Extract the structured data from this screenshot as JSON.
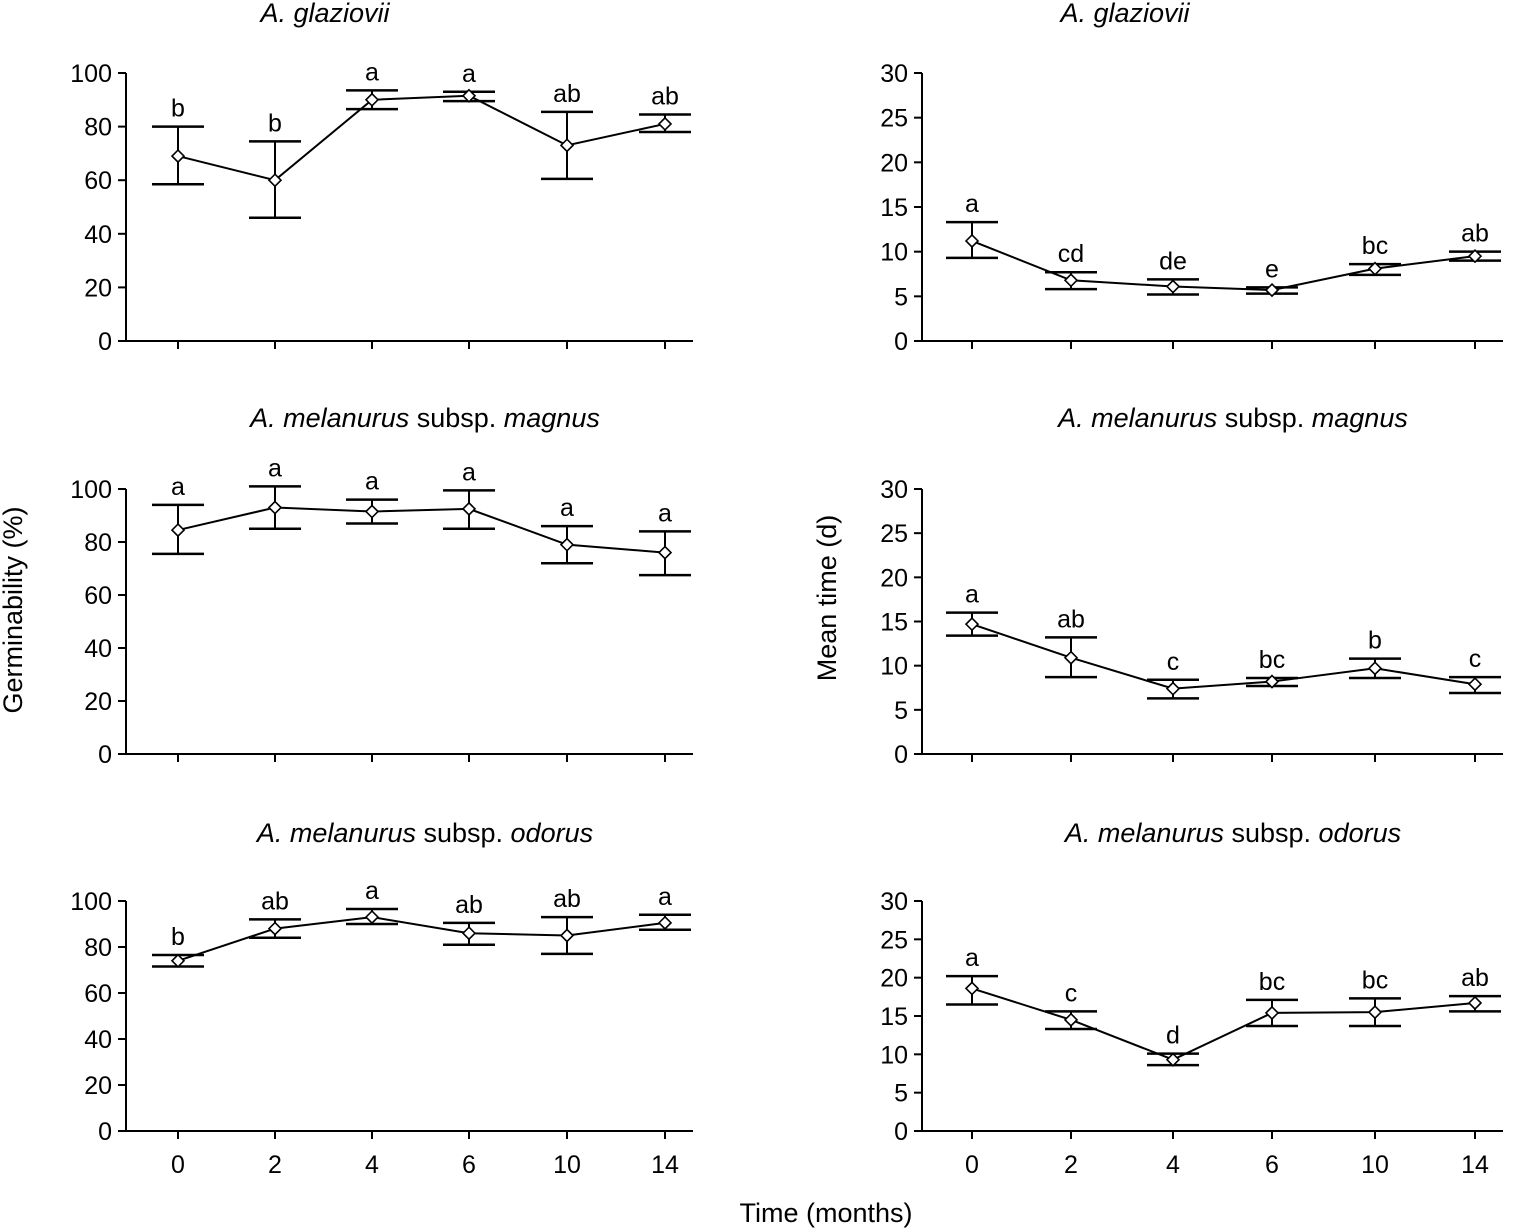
{
  "figure": {
    "ylabel_left": "Germinability (%)",
    "ylabel_right": "Mean time (d)",
    "xlabel": "Time (months)"
  },
  "chart_data": [
    {
      "type": "line",
      "title": {
        "italic": "A. glaziovii",
        "plain": "",
        "italic2": ""
      },
      "x": [
        "0",
        "2",
        "4",
        "6",
        "10",
        "14"
      ],
      "series": [
        {
          "values": [
            69,
            60,
            90,
            91.5,
            73,
            81
          ]
        }
      ],
      "error_bars": [
        [
          58.5,
          80
        ],
        [
          46,
          74.5
        ],
        [
          86.5,
          93.5
        ],
        [
          89.5,
          93
        ],
        [
          60.5,
          85.5
        ],
        [
          78,
          84.5
        ]
      ],
      "letters": [
        "b",
        "b",
        "a",
        "a",
        "ab",
        "ab"
      ],
      "ylim": [
        0,
        100
      ],
      "yticks": [
        0,
        20,
        40,
        60,
        80,
        100
      ]
    },
    {
      "type": "line",
      "title": {
        "italic": "A. glaziovii",
        "plain": "",
        "italic2": ""
      },
      "x": [
        "0",
        "2",
        "4",
        "6",
        "10",
        "14"
      ],
      "series": [
        {
          "values": [
            11.2,
            6.8,
            6.1,
            5.7,
            8.1,
            9.5
          ]
        }
      ],
      "error_bars": [
        [
          9.3,
          13.3
        ],
        [
          5.8,
          7.7
        ],
        [
          5.2,
          6.9
        ],
        [
          5.3,
          6.0
        ],
        [
          7.4,
          8.6
        ],
        [
          9.0,
          10.0
        ]
      ],
      "letters": [
        "a",
        "cd",
        "de",
        "e",
        "bc",
        "ab"
      ],
      "ylim": [
        0,
        30
      ],
      "yticks": [
        0,
        5,
        10,
        15,
        20,
        25,
        30
      ]
    },
    {
      "type": "line",
      "title": {
        "italic": "A. melanurus",
        "plain": " subsp. ",
        "italic2": "magnus"
      },
      "x": [
        "0",
        "2",
        "4",
        "6",
        "10",
        "14"
      ],
      "series": [
        {
          "values": [
            84.5,
            93,
            91.5,
            92.5,
            79,
            76
          ]
        }
      ],
      "error_bars": [
        [
          75.5,
          94
        ],
        [
          85,
          101
        ],
        [
          87,
          96
        ],
        [
          85,
          99.5
        ],
        [
          72,
          86
        ],
        [
          67.5,
          84
        ]
      ],
      "letters": [
        "a",
        "a",
        "a",
        "a",
        "a",
        "a"
      ],
      "ylim": [
        0,
        100
      ],
      "yticks": [
        0,
        20,
        40,
        60,
        80,
        100
      ]
    },
    {
      "type": "line",
      "title": {
        "italic": "A. melanurus",
        "plain": " subsp. ",
        "italic2": "magnus"
      },
      "x": [
        "0",
        "2",
        "4",
        "6",
        "10",
        "14"
      ],
      "series": [
        {
          "values": [
            14.7,
            10.9,
            7.4,
            8.2,
            9.7,
            7.9
          ]
        }
      ],
      "error_bars": [
        [
          13.4,
          16.0
        ],
        [
          8.7,
          13.2
        ],
        [
          6.3,
          8.4
        ],
        [
          7.7,
          8.6
        ],
        [
          8.6,
          10.8
        ],
        [
          6.9,
          8.7
        ]
      ],
      "letters": [
        "a",
        "ab",
        "c",
        "bc",
        "b",
        "c"
      ],
      "ylim": [
        0,
        30
      ],
      "yticks": [
        0,
        5,
        10,
        15,
        20,
        25,
        30
      ]
    },
    {
      "type": "line",
      "title": {
        "italic": "A. melanurus",
        "plain": " subsp. ",
        "italic2": "odorus"
      },
      "x": [
        "0",
        "2",
        "4",
        "6",
        "10",
        "14"
      ],
      "series": [
        {
          "values": [
            74,
            88,
            93,
            86,
            85,
            90.5
          ]
        }
      ],
      "error_bars": [
        [
          71.5,
          76.5
        ],
        [
          84,
          92
        ],
        [
          90,
          96.5
        ],
        [
          81,
          90.5
        ],
        [
          77,
          93
        ],
        [
          87.5,
          94
        ]
      ],
      "letters": [
        "b",
        "ab",
        "a",
        "ab",
        "ab",
        "a"
      ],
      "ylim": [
        0,
        100
      ],
      "yticks": [
        0,
        20,
        40,
        60,
        80,
        100
      ]
    },
    {
      "type": "line",
      "title": {
        "italic": "A. melanurus",
        "plain": " subsp. ",
        "italic2": "odorus"
      },
      "x": [
        "0",
        "2",
        "4",
        "6",
        "10",
        "14"
      ],
      "series": [
        {
          "values": [
            18.6,
            14.5,
            9.3,
            15.4,
            15.5,
            16.7
          ]
        }
      ],
      "error_bars": [
        [
          16.5,
          20.2
        ],
        [
          13.3,
          15.6
        ],
        [
          8.6,
          10.1
        ],
        [
          13.7,
          17.1
        ],
        [
          13.7,
          17.3
        ],
        [
          15.6,
          17.6
        ]
      ],
      "letters": [
        "a",
        "c",
        "d",
        "bc",
        "bc",
        "ab"
      ],
      "ylim": [
        0,
        30
      ],
      "yticks": [
        0,
        5,
        10,
        15,
        20,
        25,
        30
      ]
    }
  ]
}
